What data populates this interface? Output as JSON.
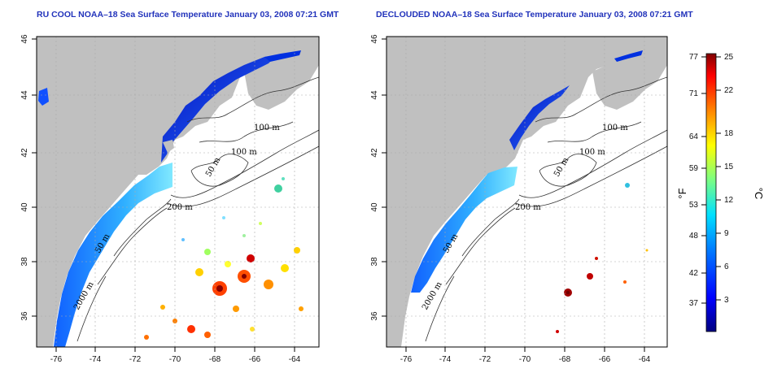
{
  "panels": [
    {
      "title": "RU COOL NOAA–18 Sea Surface Temperature January 03, 2008 07:21 GMT",
      "x_ticks": [
        "-76",
        "-74",
        "-72",
        "-70",
        "-68",
        "-66",
        "-64"
      ],
      "y_ticks": [
        "36",
        "38",
        "40",
        "42",
        "44",
        "46"
      ],
      "contour_labels": [
        "100 m",
        "100 m",
        "50 m",
        "200 m",
        "50 m",
        "2000 m"
      ]
    },
    {
      "title": "DECLOUDED NOAA–18 Sea Surface Temperature January 03, 2008 07:21 GMT",
      "x_ticks": [
        "-76",
        "-74",
        "-72",
        "-70",
        "-68",
        "-66",
        "-64"
      ],
      "y_ticks": [
        "36",
        "38",
        "40",
        "42",
        "44",
        "46"
      ],
      "contour_labels": [
        "100 m",
        "100 m",
        "50 m",
        "200 m",
        "50 m",
        "2000 m"
      ]
    }
  ],
  "colorbar": {
    "fahrenheit_label": "°F",
    "celsius_label": "°C",
    "fahrenheit_ticks": [
      "77",
      "71",
      "64",
      "59",
      "53",
      "48",
      "42",
      "37"
    ],
    "celsius_ticks": [
      "25",
      "22",
      "18",
      "15",
      "12",
      "9",
      "6",
      "3"
    ]
  },
  "colors": {
    "land": "#c0c0c0",
    "water_missing": "#ffffff",
    "title": "#2233bb",
    "scale": [
      "#00007f",
      "#0000ff",
      "#0080ff",
      "#00e0ff",
      "#7fff7f",
      "#ffff00",
      "#ff8000",
      "#ff0000",
      "#7f0000"
    ]
  }
}
